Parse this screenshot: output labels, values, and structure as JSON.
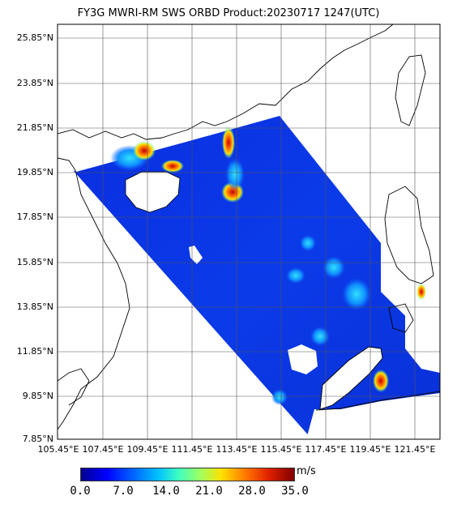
{
  "title": "FY3G MWRI-RM SWS ORBD Product:20230717 1247(UTC)",
  "lat_labels": [
    "25.85°N",
    "23.85°N",
    "21.85°N",
    "19.85°N",
    "17.85°N",
    "15.85°N",
    "13.85°N",
    "11.85°N",
    "9.85°N",
    "7.85°N"
  ],
  "lon_labels": [
    "105.45°E",
    "107.45°E",
    "109.45°E",
    "111.45°E",
    "113.45°E",
    "115.45°E",
    "117.45°E",
    "119.45°E",
    "121.45°E"
  ],
  "colorbar": {
    "unit": "m/s",
    "ticks": [
      "0.0",
      "7.0",
      "14.0",
      "21.0",
      "28.0",
      "35.0"
    ]
  }
}
